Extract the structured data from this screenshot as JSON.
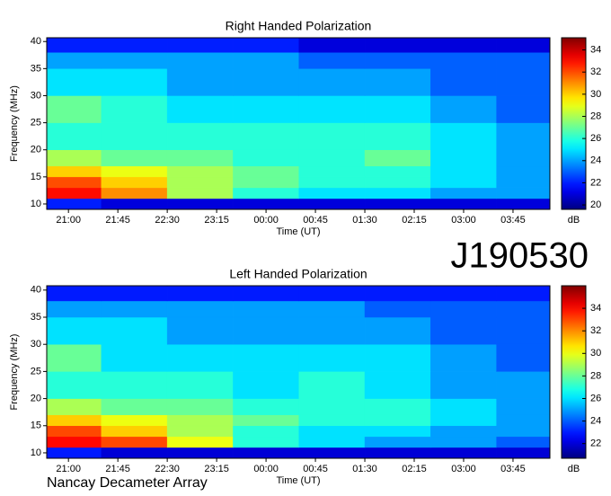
{
  "annotation": "J190530",
  "footer": "Nancay Decameter Array",
  "chart_data": [
    {
      "type": "heatmap",
      "title": "Right Handed Polarization",
      "x_label": "Time (UT)",
      "y_label": "Frequency (MHz)",
      "colormap": "jet",
      "colorbar_label": "dB",
      "xlim": [
        20.67,
        28.31
      ],
      "xticks": [
        {
          "value": 21.0,
          "label": "21:00"
        },
        {
          "value": 21.75,
          "label": "21:45"
        },
        {
          "value": 22.5,
          "label": "22:30"
        },
        {
          "value": 23.25,
          "label": "23:15"
        },
        {
          "value": 24.0,
          "label": "00:00"
        },
        {
          "value": 24.75,
          "label": "00:45"
        },
        {
          "value": 25.5,
          "label": "01:30"
        },
        {
          "value": 26.25,
          "label": "02:15"
        },
        {
          "value": 27.0,
          "label": "03:00"
        },
        {
          "value": 27.75,
          "label": "03:45"
        }
      ],
      "ylim": [
        9,
        40.7
      ],
      "yticks": [
        10,
        15,
        20,
        25,
        30,
        35,
        40
      ],
      "zlim": [
        19.6,
        35.1
      ],
      "zticks": [
        20,
        22,
        24,
        26,
        28,
        30,
        32,
        34
      ],
      "x_bins": [
        20.67,
        21.5,
        22.5,
        23.5,
        24.5,
        25.5,
        26.5,
        27.5,
        28.31
      ],
      "y_bins": [
        9,
        11,
        13,
        15,
        17,
        20,
        25,
        30,
        35,
        38,
        40.7
      ],
      "z": [
        [
          22,
          21,
          21,
          21,
          21,
          21,
          21,
          21
        ],
        [
          33,
          31,
          28,
          26,
          25,
          25,
          24,
          24
        ],
        [
          32,
          30,
          28,
          27,
          26,
          26,
          25,
          24
        ],
        [
          30,
          29,
          28,
          27,
          26,
          26,
          25,
          24
        ],
        [
          28,
          27,
          27,
          26,
          26,
          27,
          25,
          24
        ],
        [
          26,
          26,
          26,
          26,
          26,
          26,
          25,
          24
        ],
        [
          27,
          26,
          25,
          25,
          25,
          25,
          24,
          23
        ],
        [
          25,
          25,
          24,
          24,
          24,
          24,
          23,
          23
        ],
        [
          24,
          24,
          24,
          24,
          23,
          23,
          23,
          23
        ],
        [
          22,
          22,
          22,
          22,
          21,
          21,
          21,
          21
        ]
      ]
    },
    {
      "type": "heatmap",
      "title": "Left Handed Polarization",
      "x_label": "Time (UT)",
      "y_label": "Frequency (MHz)",
      "colormap": "jet",
      "colorbar_label": "dB",
      "xlim": [
        20.67,
        28.31
      ],
      "xticks": [
        {
          "value": 21.0,
          "label": "21:00"
        },
        {
          "value": 21.75,
          "label": "21:45"
        },
        {
          "value": 22.5,
          "label": "22:30"
        },
        {
          "value": 23.25,
          "label": "23:15"
        },
        {
          "value": 24.0,
          "label": "00:00"
        },
        {
          "value": 24.75,
          "label": "00:45"
        },
        {
          "value": 25.5,
          "label": "01:30"
        },
        {
          "value": 26.25,
          "label": "02:15"
        },
        {
          "value": 27.0,
          "label": "03:00"
        },
        {
          "value": 27.75,
          "label": "03:45"
        }
      ],
      "ylim": [
        9,
        40.8
      ],
      "yticks": [
        10,
        15,
        20,
        25,
        30,
        35,
        40
      ],
      "zlim": [
        20.7,
        36
      ],
      "zticks": [
        22,
        24,
        26,
        28,
        30,
        32,
        34
      ],
      "x_bins": [
        20.67,
        21.5,
        22.5,
        23.5,
        24.5,
        25.5,
        26.5,
        27.5,
        28.31
      ],
      "y_bins": [
        9,
        11,
        13,
        15,
        17,
        20,
        25,
        30,
        35,
        38,
        40.7
      ],
      "z": [
        [
          23,
          22,
          22,
          22,
          22,
          22,
          22,
          22
        ],
        [
          34,
          33,
          30,
          27,
          26,
          25,
          25,
          24
        ],
        [
          33,
          31,
          29,
          27,
          26,
          26,
          25,
          25
        ],
        [
          31,
          30,
          29,
          28,
          27,
          27,
          26,
          25
        ],
        [
          29,
          28,
          28,
          27,
          27,
          27,
          26,
          25
        ],
        [
          27,
          27,
          27,
          26,
          27,
          26,
          25,
          25
        ],
        [
          28,
          26,
          26,
          26,
          26,
          26,
          25,
          24
        ],
        [
          26,
          26,
          25,
          25,
          25,
          25,
          24,
          24
        ],
        [
          25,
          25,
          25,
          25,
          25,
          24,
          24,
          24
        ],
        [
          23,
          23,
          23,
          23,
          23,
          23,
          23,
          23
        ]
      ]
    }
  ]
}
